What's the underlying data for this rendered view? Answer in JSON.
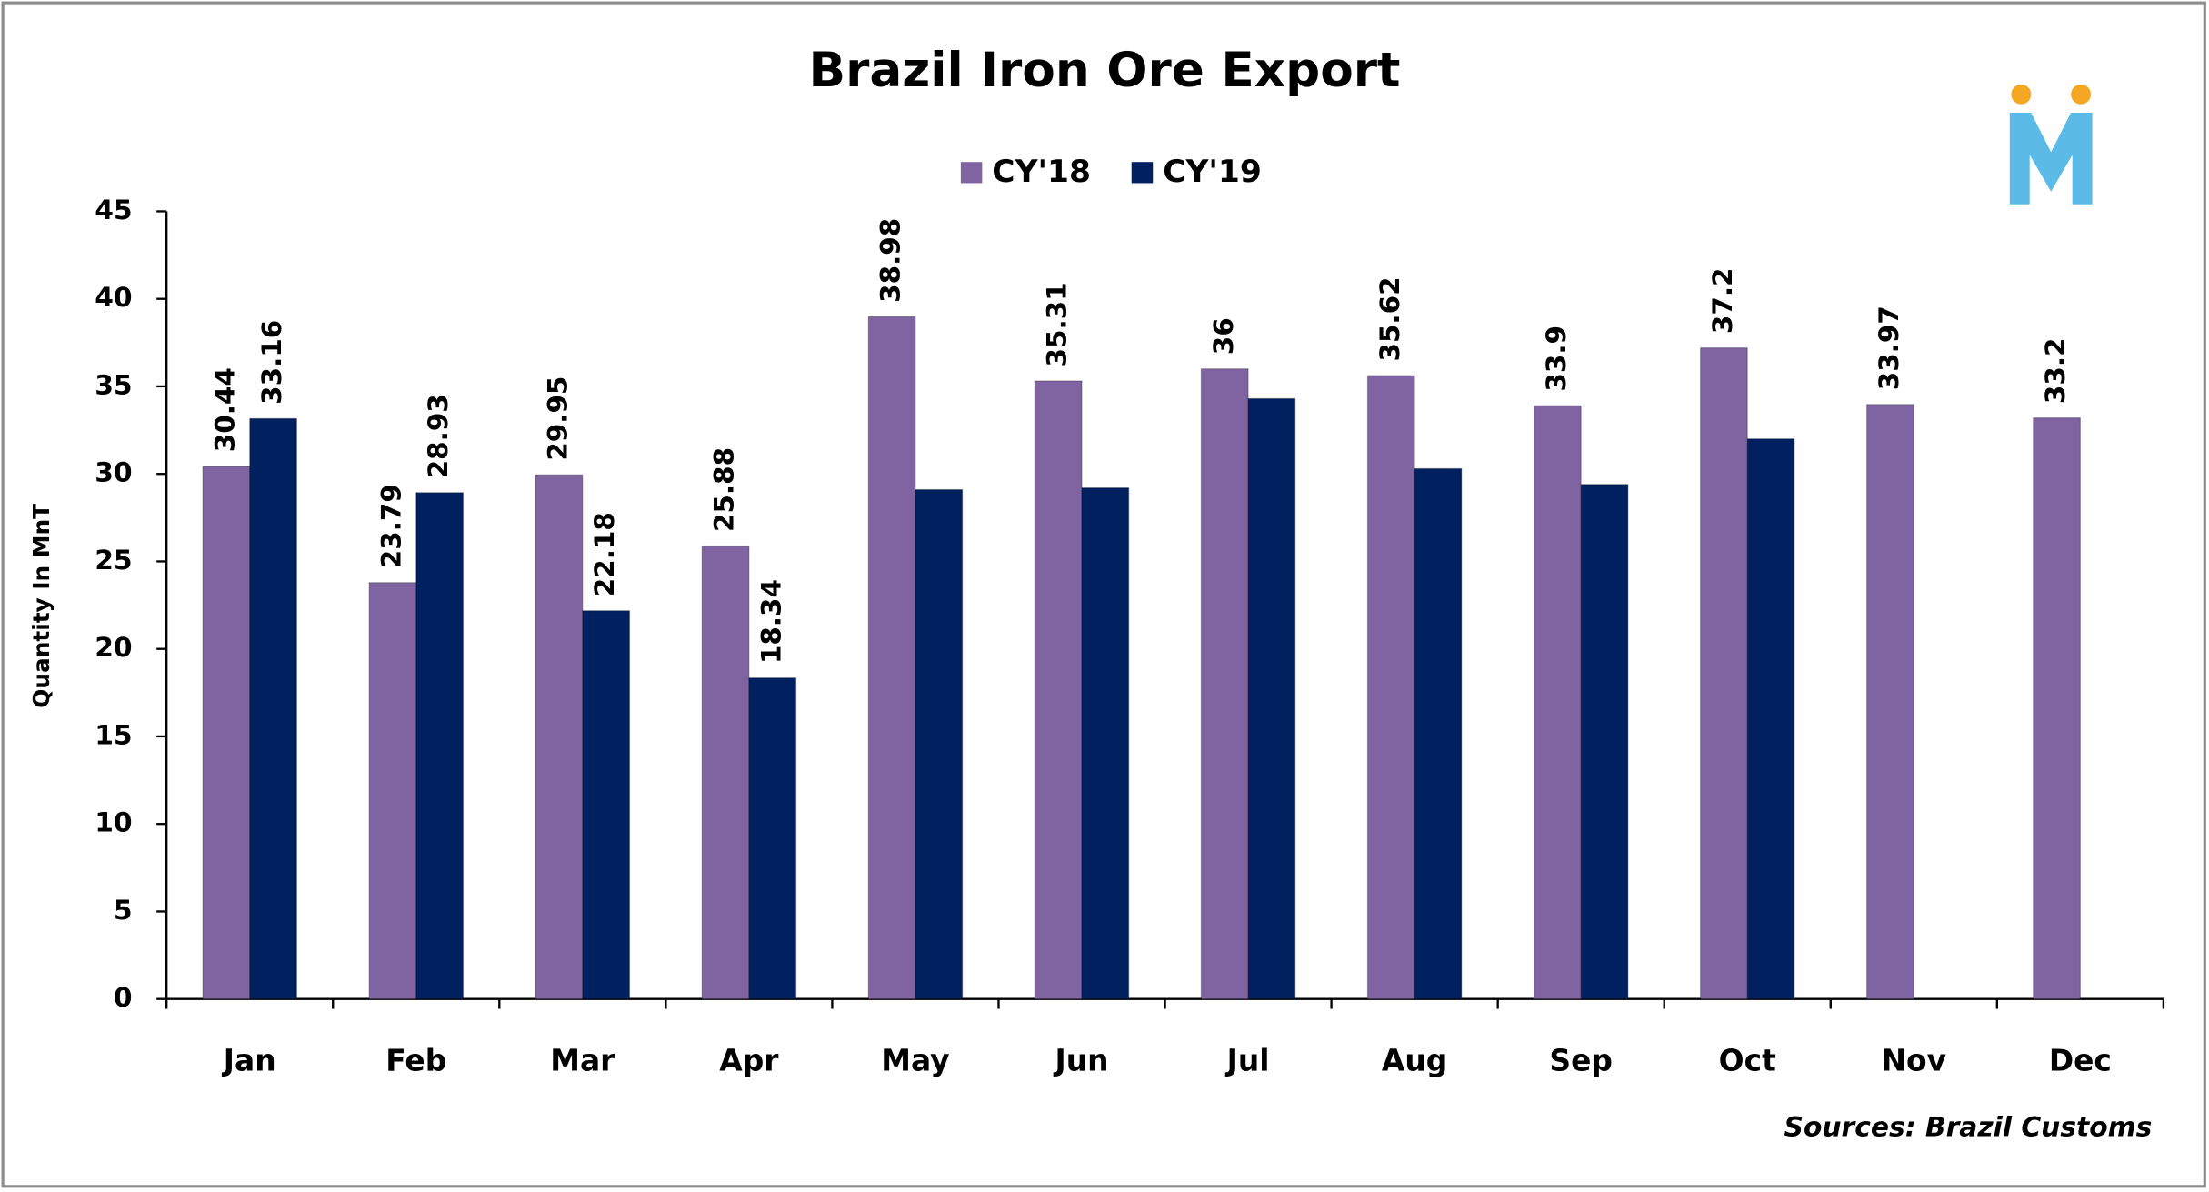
{
  "chart_data": {
    "type": "bar",
    "title": "Brazil Iron Ore Export",
    "y_label": "Quantity In MnT",
    "source": "Sources: Brazil Customs",
    "categories": [
      "Jan",
      "Feb",
      "Mar",
      "Apr",
      "May",
      "Jun",
      "Jul",
      "Aug",
      "Sep",
      "Oct",
      "Nov",
      "Dec"
    ],
    "series": [
      {
        "name": "CY'18",
        "color": "#8064a2",
        "values": [
          30.44,
          23.79,
          29.95,
          25.88,
          38.98,
          35.31,
          36,
          35.62,
          33.9,
          37.2,
          33.97,
          33.2
        ],
        "value_labels": [
          "30.44",
          "23.79",
          "29.95",
          "25.88",
          "38.98",
          "35.31",
          "36",
          "35.62",
          "33.9",
          "37.2",
          "33.97",
          "33.2"
        ]
      },
      {
        "name": "CY'19",
        "color": "#002060",
        "values": [
          33.16,
          28.93,
          22.18,
          18.34,
          29.1,
          29.2,
          34.3,
          30.3,
          29.4,
          32.0,
          null,
          null
        ],
        "value_labels": [
          "33.16",
          "28.93",
          "22.18",
          "18.34",
          null,
          null,
          null,
          null,
          null,
          null,
          null,
          null
        ]
      }
    ],
    "ylim": [
      0,
      45
    ],
    "yticks": [
      0,
      5,
      10,
      15,
      20,
      25,
      30,
      35,
      40,
      45
    ],
    "grid": false,
    "legend": "top"
  }
}
